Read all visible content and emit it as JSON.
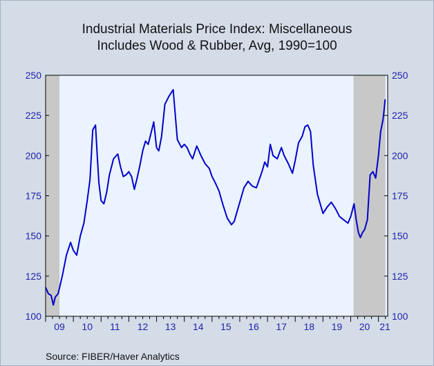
{
  "title": "Industrial Materials Price Index: Miscellaneous",
  "subtitle": "Includes Wood & Rubber, Avg, 1990=100",
  "source": "Source:   FIBER/Haver Analytics",
  "colors": {
    "line": "#0000c8",
    "plot_bg": "#eaf3ff",
    "recession": "#c8c8c8",
    "axis_text": "#1f1fa8",
    "frame_bg": "#d4dce8"
  },
  "chart_data": {
    "type": "line",
    "title": "Industrial Materials Price Index: Miscellaneous",
    "subtitle": "Includes Wood & Rubber, Avg, 1990=100",
    "ylim": [
      100,
      250
    ],
    "yticks": [
      100,
      125,
      150,
      175,
      200,
      225,
      250
    ],
    "y_axis_both_sides": true,
    "xlim": [
      2009.0,
      2021.333
    ],
    "xtick_labels": [
      "09",
      "10",
      "11",
      "12",
      "13",
      "14",
      "15",
      "16",
      "17",
      "18",
      "19",
      "20",
      "21"
    ],
    "grid": false,
    "recession_bands": [
      [
        2009.0,
        2009.5
      ],
      [
        2020.1,
        2021.25
      ]
    ],
    "x": [
      2009.0,
      2009.1,
      2009.2,
      2009.28,
      2009.35,
      2009.45,
      2009.6,
      2009.75,
      2009.9,
      2010.0,
      2010.12,
      2010.25,
      2010.38,
      2010.5,
      2010.6,
      2010.7,
      2010.8,
      2010.86,
      2010.92,
      2011.0,
      2011.1,
      2011.2,
      2011.3,
      2011.45,
      2011.6,
      2011.7,
      2011.8,
      2011.9,
      2012.0,
      2012.1,
      2012.2,
      2012.3,
      2012.4,
      2012.5,
      2012.6,
      2012.7,
      2012.8,
      2012.9,
      2013.0,
      2013.08,
      2013.18,
      2013.3,
      2013.45,
      2013.6,
      2013.75,
      2013.9,
      2014.0,
      2014.1,
      2014.2,
      2014.3,
      2014.45,
      2014.6,
      2014.75,
      2014.9,
      2015.0,
      2015.12,
      2015.25,
      2015.4,
      2015.55,
      2015.7,
      2015.8,
      2015.9,
      2016.0,
      2016.15,
      2016.3,
      2016.45,
      2016.6,
      2016.8,
      2016.9,
      2017.0,
      2017.1,
      2017.2,
      2017.35,
      2017.5,
      2017.6,
      2017.75,
      2017.9,
      2018.0,
      2018.12,
      2018.25,
      2018.35,
      2018.45,
      2018.55,
      2018.65,
      2018.8,
      2019.0,
      2019.15,
      2019.3,
      2019.45,
      2019.6,
      2019.75,
      2019.9,
      2020.0,
      2020.06,
      2020.12,
      2020.2,
      2020.28,
      2020.35,
      2020.42,
      2020.5,
      2020.6,
      2020.7,
      2020.8,
      2020.9,
      2021.0,
      2021.08,
      2021.16,
      2021.2,
      2021.24
    ],
    "series": [
      {
        "values": [
          118,
          114,
          113,
          107,
          112,
          114,
          125,
          138,
          146,
          141,
          138,
          150,
          158,
          172,
          185,
          216,
          219,
          200,
          183,
          172,
          170,
          177,
          188,
          198,
          201,
          193,
          187,
          188,
          190,
          187,
          179,
          186,
          194,
          203,
          209,
          207,
          214,
          221,
          205,
          203,
          212,
          232,
          237,
          241,
          210,
          205,
          207,
          205,
          201,
          198,
          206,
          200,
          195,
          192,
          187,
          183,
          178,
          169,
          161,
          157,
          159,
          165,
          171,
          180,
          184,
          181,
          180,
          190,
          196,
          193,
          207,
          200,
          198,
          205,
          200,
          195,
          189,
          197,
          208,
          212,
          218,
          219,
          215,
          194,
          176,
          164,
          168,
          171,
          167,
          162,
          160,
          158,
          162,
          166,
          170,
          160,
          152,
          149,
          152,
          154,
          160,
          188,
          190,
          186,
          200,
          215,
          222,
          228,
          235
        ]
      }
    ]
  }
}
